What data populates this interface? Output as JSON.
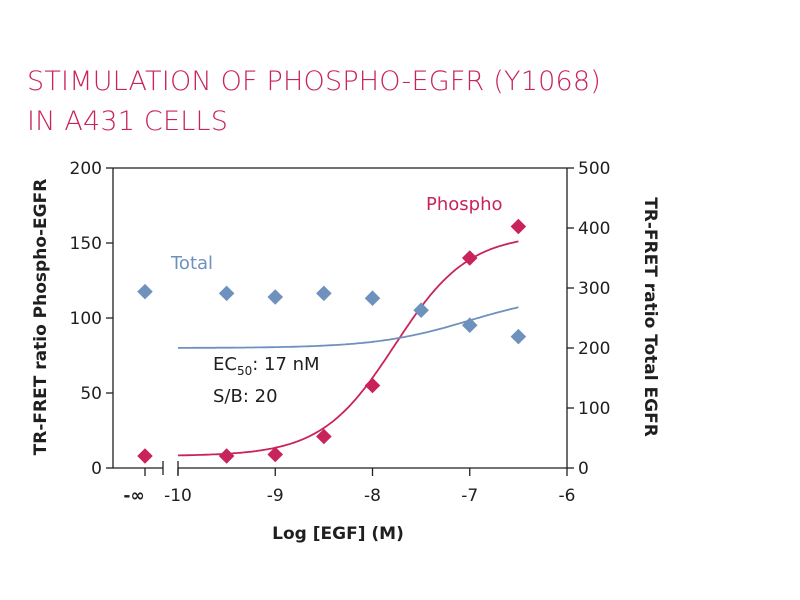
{
  "title_lines": [
    "STIMULATION OF PHOSPHO-EGFR (Y1068)",
    "IN A431 CELLS"
  ],
  "colors": {
    "phospho": "#c8245a",
    "total": "#6e91bd",
    "axis": "#1f1f1f",
    "title": "#c8245a"
  },
  "chart_data": {
    "type": "scatter",
    "title": "STIMULATION OF PHOSPHO-EGFR (Y1068) IN A431 CELLS",
    "xlabel": "Log [EGF] (M)",
    "ylabel_left": "TR-FRET ratio Phospho-EGFR",
    "ylabel_right": "TR-FRET ratio Total EGFR",
    "xlim": [
      -10,
      -6
    ],
    "ylim_left": [
      0,
      200
    ],
    "ylim_right": [
      0,
      500
    ],
    "x_ticks": [
      "-10",
      "-9",
      "-8",
      "-7",
      "-6"
    ],
    "x_tick_values": [
      -10,
      -9,
      -8,
      -7,
      -6
    ],
    "x_break_label": "-∞",
    "y_left_ticks": [
      0,
      50,
      100,
      150,
      200
    ],
    "y_right_ticks": [
      0,
      100,
      200,
      300,
      400,
      500
    ],
    "series": [
      {
        "name": "Phospho",
        "axis": "left",
        "baseline_value": 8,
        "x": [
          -9.5,
          -9,
          -8.5,
          -8,
          -7,
          -6.5
        ],
        "values": [
          8,
          9,
          21,
          55,
          140,
          161
        ],
        "fit": {
          "bottom": 8,
          "top": 156,
          "log_ec50": -7.77,
          "hill": 1.15
        }
      },
      {
        "name": "Total",
        "axis": "right",
        "baseline_value": 294,
        "x": [
          -9.5,
          -9,
          -8.5,
          -8,
          -7.5,
          -7,
          -6.5
        ],
        "values": [
          291,
          285,
          291,
          283,
          263,
          238,
          219
        ],
        "fit": {
          "bottom": 200,
          "top": 292,
          "log_ec50": -7.0,
          "hill": 0.9
        }
      }
    ],
    "annotations": {
      "ec50_label": "EC",
      "ec50_sub": "50",
      "ec50_value": ": 17 nM",
      "sb": "S/B: 20"
    },
    "grid": false
  }
}
